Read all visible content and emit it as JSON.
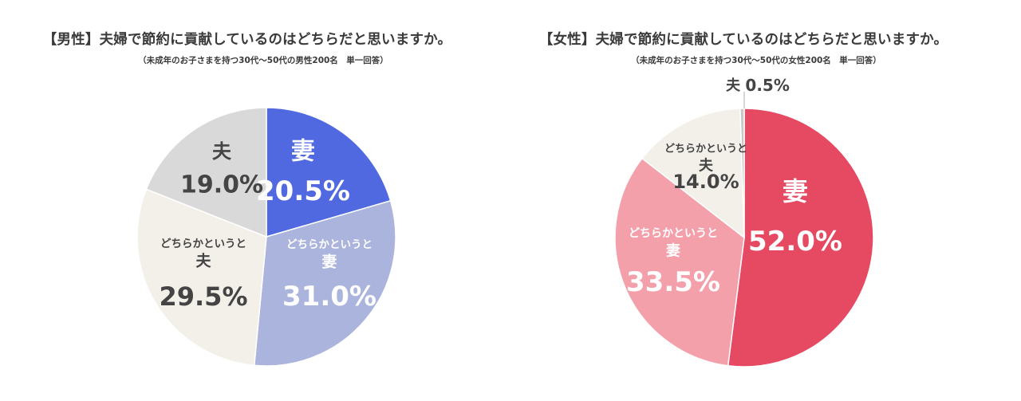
{
  "chart_data": [
    {
      "type": "pie",
      "title": "【男性】夫婦で節約に貢献しているのはどちらだと思いますか。",
      "subtitle": "（未成年のお子さまを持つ30代〜50代の男性200名　単一回答）",
      "slices": [
        {
          "label": "妻",
          "label_lines": [
            "妻"
          ],
          "value": 20.5,
          "value_text": "20.5%",
          "color": "#5068e0",
          "text_color": "#ffffff"
        },
        {
          "label": "どちらかというと妻",
          "label_lines": [
            "どちらかというと",
            "妻"
          ],
          "value": 31.0,
          "value_text": "31.0%",
          "color": "#abb4dc",
          "text_color": "#ffffff"
        },
        {
          "label": "どちらかというと夫",
          "label_lines": [
            "どちらかというと",
            "夫"
          ],
          "value": 29.5,
          "value_text": "29.5%",
          "color": "#f3f0e9",
          "text_color": "#444444"
        },
        {
          "label": "夫",
          "label_lines": [
            "夫"
          ],
          "value": 19.0,
          "value_text": "19.0%",
          "color": "#d9d9d9",
          "text_color": "#444444"
        }
      ]
    },
    {
      "type": "pie",
      "title": "【女性】夫婦で節約に貢献しているのはどちらだと思いますか。",
      "subtitle": "（未成年のお子さまを持つ30代〜50代の女性200名　単一回答）",
      "slices": [
        {
          "label": "妻",
          "label_lines": [
            "妻"
          ],
          "value": 52.0,
          "value_text": "52.0%",
          "color": "#e54a62",
          "text_color": "#ffffff"
        },
        {
          "label": "どちらかというと妻",
          "label_lines": [
            "どちらかというと",
            "妻"
          ],
          "value": 33.5,
          "value_text": "33.5%",
          "color": "#f4a0ab",
          "text_color": "#ffffff"
        },
        {
          "label": "どちらかというと夫",
          "label_lines": [
            "どちらかというと",
            "夫"
          ],
          "value": 14.0,
          "value_text": "14.0%",
          "color": "#f3f0e9",
          "text_color": "#444444"
        },
        {
          "label": "夫",
          "label_lines": [
            "夫"
          ],
          "value": 0.5,
          "value_text": "0.5%",
          "color": "#c8c8c8",
          "text_color": "#444444"
        }
      ]
    }
  ]
}
